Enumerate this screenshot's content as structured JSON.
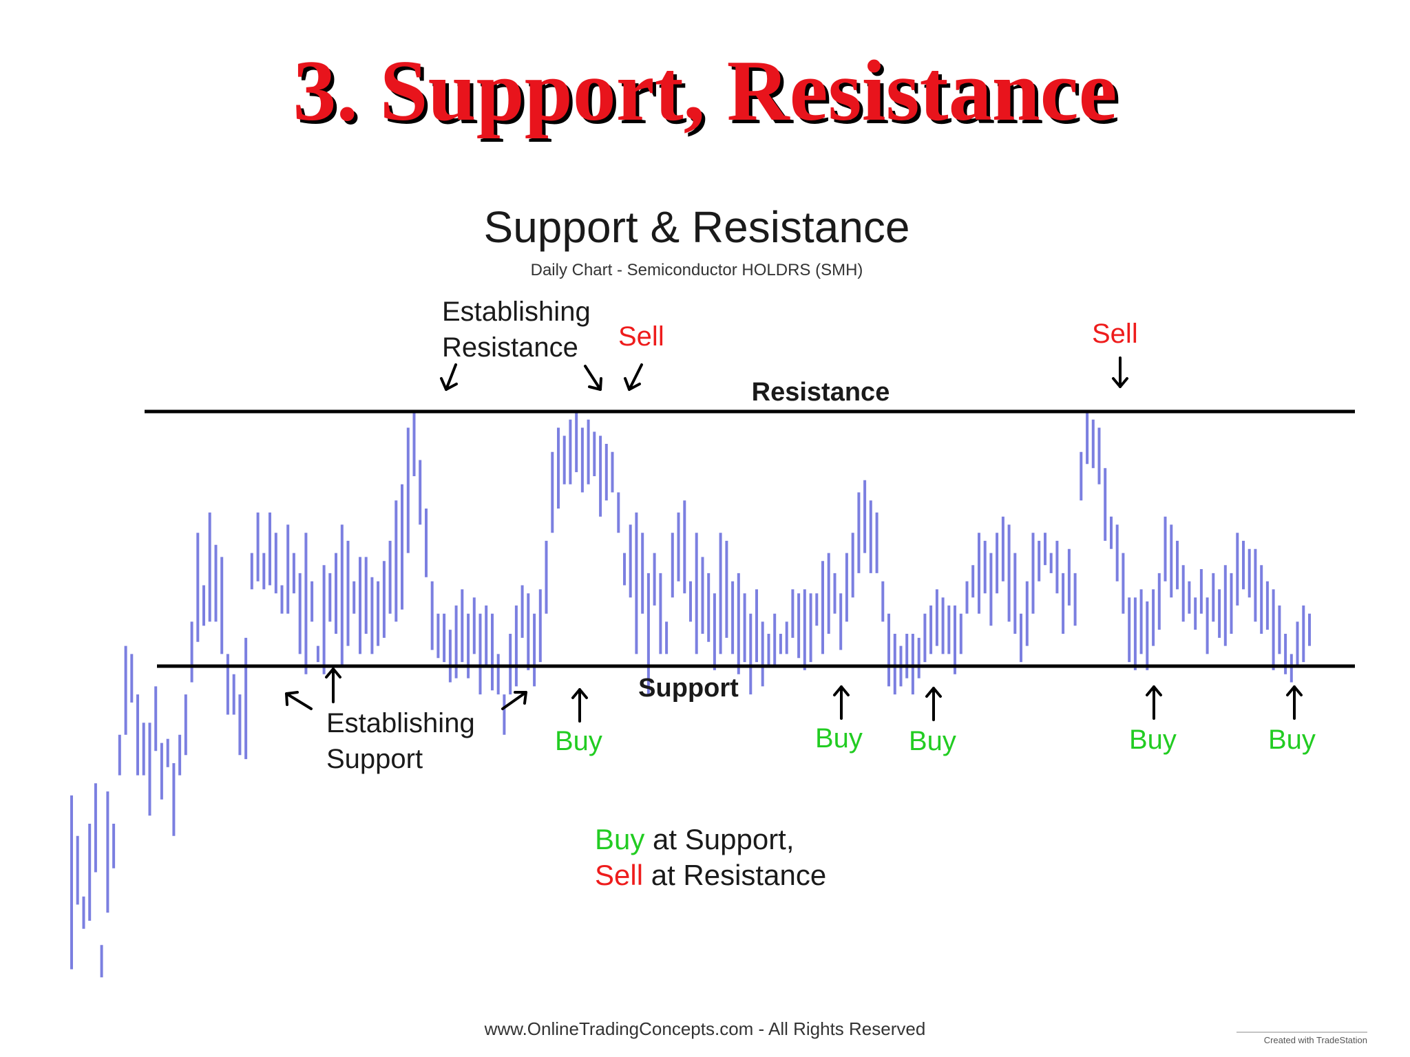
{
  "slide": {
    "title": "3. Support, Resistance"
  },
  "chart_data": {
    "type": "bar",
    "title": "Support & Resistance",
    "subtitle": "Daily Chart - Semiconductor HOLDRS (SMH)",
    "resistance_label": "Resistance",
    "support_label": "Support",
    "resistance_level": 100,
    "support_level": 37,
    "ylim": [
      -40,
      110
    ],
    "bar_color": "#7b7fe0",
    "buy_color": "#22cc22",
    "sell_color": "#ee1c1c",
    "bars": [
      [
        5,
        -38
      ],
      [
        -5,
        -22
      ],
      [
        -28,
        -20
      ],
      [
        -2,
        -26
      ],
      [
        8,
        -14
      ],
      [
        -40,
        -32
      ],
      [
        -24,
        6
      ],
      [
        -13,
        -2
      ],
      [
        20,
        10
      ],
      [
        20,
        42
      ],
      [
        40,
        28
      ],
      [
        30,
        10
      ],
      [
        23,
        10
      ],
      [
        23,
        0
      ],
      [
        32,
        16
      ],
      [
        18,
        4
      ],
      [
        19,
        12
      ],
      [
        13,
        -5
      ],
      [
        20,
        10
      ],
      [
        30,
        15
      ],
      [
        48,
        33
      ],
      [
        70,
        43
      ],
      [
        57,
        47
      ],
      [
        75,
        48
      ],
      [
        67,
        48
      ],
      [
        64,
        40
      ],
      [
        40,
        25
      ],
      [
        35,
        25
      ],
      [
        30,
        15
      ],
      [
        44,
        14
      ],
      [
        65,
        56
      ],
      [
        75,
        58
      ],
      [
        65,
        56
      ],
      [
        75,
        57
      ],
      [
        70,
        55
      ],
      [
        57,
        50
      ],
      [
        72,
        50
      ],
      [
        65,
        55
      ],
      [
        60,
        40
      ],
      [
        70,
        35
      ],
      [
        58,
        48
      ],
      [
        42,
        38
      ],
      [
        62,
        35
      ],
      [
        60,
        48
      ],
      [
        65,
        45
      ],
      [
        72,
        37
      ],
      [
        68,
        42
      ],
      [
        58,
        50
      ],
      [
        64,
        40
      ],
      [
        64,
        45
      ],
      [
        59,
        40
      ],
      [
        58,
        42
      ],
      [
        63,
        44
      ],
      [
        68,
        50
      ],
      [
        78,
        48
      ],
      [
        82,
        51
      ],
      [
        96,
        65
      ],
      [
        100,
        84
      ],
      [
        88,
        72
      ],
      [
        76,
        59
      ],
      [
        58,
        41
      ],
      [
        50,
        39
      ],
      [
        50,
        38
      ],
      [
        46,
        33
      ],
      [
        52,
        34
      ],
      [
        56,
        38
      ],
      [
        50,
        34
      ],
      [
        54,
        40
      ],
      [
        50,
        30
      ],
      [
        52,
        37
      ],
      [
        50,
        31
      ],
      [
        40,
        30
      ],
      [
        30,
        20
      ],
      [
        45,
        30
      ],
      [
        52,
        32
      ],
      [
        57,
        44
      ],
      [
        55,
        36
      ],
      [
        50,
        32
      ],
      [
        56,
        38
      ],
      [
        68,
        50
      ],
      [
        90,
        70
      ],
      [
        96,
        76
      ],
      [
        94,
        82
      ],
      [
        98,
        82
      ],
      [
        100,
        85
      ],
      [
        96,
        80
      ],
      [
        98,
        82
      ],
      [
        95,
        84
      ],
      [
        94,
        74
      ],
      [
        92,
        78
      ],
      [
        90,
        80
      ],
      [
        80,
        70
      ],
      [
        65,
        57
      ],
      [
        72,
        54
      ],
      [
        75,
        40
      ],
      [
        70,
        50
      ],
      [
        60,
        30
      ],
      [
        65,
        52
      ],
      [
        60,
        40
      ],
      [
        48,
        40
      ],
      [
        70,
        54
      ],
      [
        75,
        58
      ],
      [
        78,
        55
      ],
      [
        58,
        48
      ],
      [
        70,
        40
      ],
      [
        64,
        45
      ],
      [
        60,
        43
      ],
      [
        55,
        36
      ],
      [
        70,
        40
      ],
      [
        68,
        44
      ],
      [
        58,
        40
      ],
      [
        60,
        35
      ],
      [
        55,
        38
      ],
      [
        50,
        30
      ],
      [
        56,
        38
      ],
      [
        48,
        32
      ],
      [
        45,
        37
      ],
      [
        50,
        37
      ],
      [
        45,
        40
      ],
      [
        48,
        40
      ],
      [
        56,
        44
      ],
      [
        55,
        39
      ],
      [
        56,
        36
      ],
      [
        55,
        38
      ],
      [
        55,
        47
      ],
      [
        63,
        40
      ],
      [
        65,
        45
      ],
      [
        60,
        50
      ],
      [
        55,
        41
      ],
      [
        65,
        48
      ],
      [
        70,
        54
      ],
      [
        80,
        60
      ],
      [
        83,
        65
      ],
      [
        78,
        60
      ],
      [
        75,
        60
      ],
      [
        58,
        48
      ],
      [
        50,
        32
      ],
      [
        45,
        30
      ],
      [
        42,
        32
      ],
      [
        45,
        34
      ],
      [
        45,
        30
      ],
      [
        44,
        34
      ],
      [
        50,
        38
      ],
      [
        52,
        40
      ],
      [
        56,
        42
      ],
      [
        54,
        40
      ],
      [
        52,
        40
      ],
      [
        52,
        35
      ],
      [
        50,
        40
      ],
      [
        58,
        50
      ],
      [
        62,
        54
      ],
      [
        70,
        50
      ],
      [
        68,
        55
      ],
      [
        65,
        47
      ],
      [
        70,
        55
      ],
      [
        74,
        58
      ],
      [
        72,
        48
      ],
      [
        65,
        45
      ],
      [
        50,
        38
      ],
      [
        58,
        42
      ],
      [
        70,
        50
      ],
      [
        68,
        58
      ],
      [
        70,
        62
      ],
      [
        65,
        60
      ],
      [
        68,
        55
      ],
      [
        60,
        45
      ],
      [
        66,
        52
      ],
      [
        60,
        47
      ],
      [
        90,
        78
      ],
      [
        100,
        87
      ],
      [
        98,
        86
      ],
      [
        96,
        82
      ],
      [
        86,
        68
      ],
      [
        74,
        66
      ],
      [
        72,
        58
      ],
      [
        65,
        50
      ],
      [
        54,
        38
      ],
      [
        54,
        36
      ],
      [
        56,
        40
      ],
      [
        53,
        36
      ],
      [
        56,
        42
      ],
      [
        60,
        46
      ],
      [
        74,
        58
      ],
      [
        72,
        54
      ],
      [
        68,
        56
      ],
      [
        62,
        48
      ],
      [
        58,
        50
      ],
      [
        54,
        46
      ],
      [
        61,
        50
      ],
      [
        54,
        40
      ],
      [
        60,
        48
      ],
      [
        56,
        44
      ],
      [
        62,
        42
      ],
      [
        60,
        45
      ],
      [
        70,
        52
      ],
      [
        68,
        56
      ],
      [
        66,
        54
      ],
      [
        66,
        48
      ],
      [
        62,
        45
      ],
      [
        58,
        46
      ],
      [
        56,
        36
      ],
      [
        52,
        40
      ],
      [
        45,
        35
      ],
      [
        40,
        33
      ],
      [
        48,
        37
      ],
      [
        52,
        38
      ],
      [
        50,
        42
      ]
    ],
    "annotations": [
      {
        "id": "establishing-resistance",
        "lines": [
          "Establishing",
          "Resistance"
        ],
        "color": "#111111"
      },
      {
        "id": "sell-1",
        "lines": [
          "Sell"
        ],
        "color": "#ee1c1c"
      },
      {
        "id": "sell-2",
        "lines": [
          "Sell"
        ],
        "color": "#ee1c1c"
      },
      {
        "id": "establishing-support",
        "lines": [
          "Establishing",
          "Support"
        ],
        "color": "#111111"
      },
      {
        "id": "buy-1",
        "lines": [
          "Buy"
        ],
        "color": "#22cc22"
      },
      {
        "id": "buy-2",
        "lines": [
          "Buy"
        ],
        "color": "#22cc22"
      },
      {
        "id": "buy-3",
        "lines": [
          "Buy"
        ],
        "color": "#22cc22"
      },
      {
        "id": "buy-4",
        "lines": [
          "Buy"
        ],
        "color": "#22cc22"
      },
      {
        "id": "buy-5",
        "lines": [
          "Buy"
        ],
        "color": "#22cc22"
      }
    ],
    "caption": {
      "buy_word": "Buy",
      "buy_rest": " at Support,",
      "sell_word": "Sell",
      "sell_rest": " at Resistance"
    },
    "footer": "www.OnlineTradingConcepts.com - All Rights Reserved",
    "credit": "Created with TradeStation"
  }
}
